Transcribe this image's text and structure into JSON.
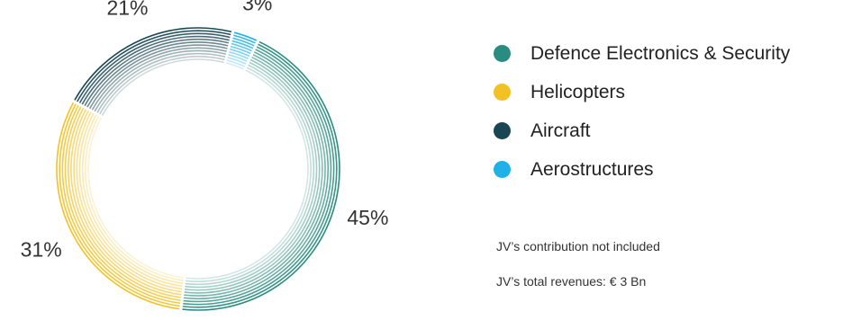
{
  "chart_data": {
    "type": "pie",
    "style": "donut",
    "title": "",
    "categories": [
      "Defence Electronics & Security",
      "Helicopters",
      "Aircraft",
      "Aerostructures"
    ],
    "values": [
      45,
      31,
      21,
      3
    ],
    "value_labels": [
      "45%",
      "31%",
      "21%",
      "3%"
    ],
    "colors": [
      "#2a8c80",
      "#f2c224",
      "#1a4654",
      "#1fb1e8"
    ],
    "legend_position": "right"
  },
  "legend": {
    "items": [
      {
        "label": "Defence Electronics & Security",
        "color": "#2a8c80"
      },
      {
        "label": "Helicopters",
        "color": "#f2c224"
      },
      {
        "label": "Aircraft",
        "color": "#1a4654"
      },
      {
        "label": "Aerostructures",
        "color": "#1fb1e8"
      }
    ]
  },
  "notes": {
    "line1": "JV’s contribution not included",
    "line2": "JV’s total revenues: € 3 Bn"
  }
}
